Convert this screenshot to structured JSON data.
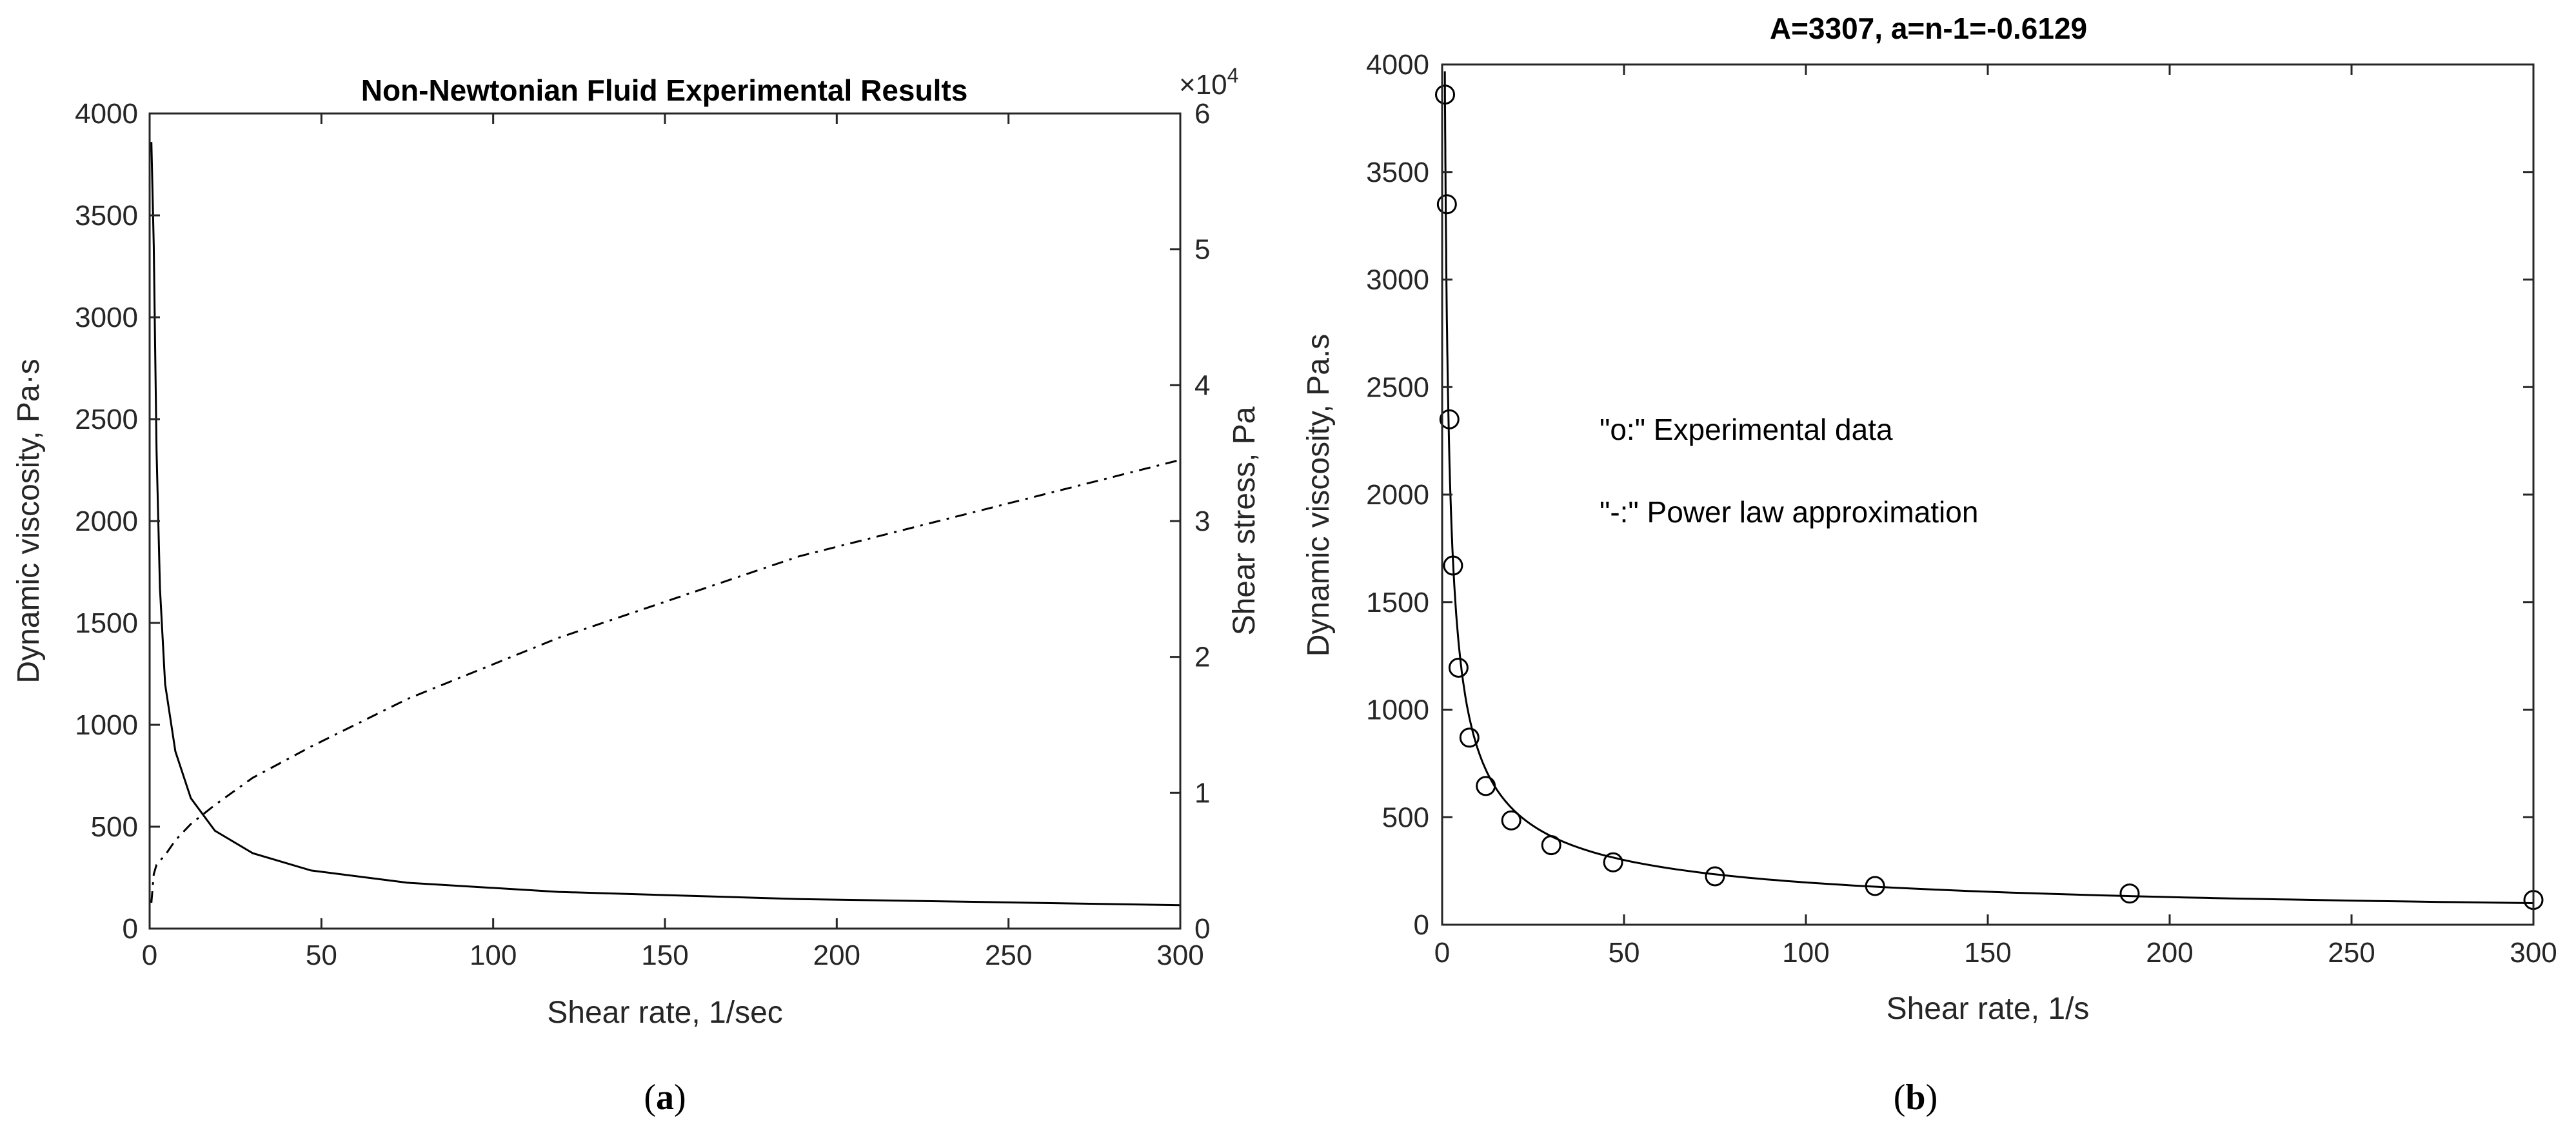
{
  "chart_data": [
    {
      "type": "line",
      "panel_label": "a",
      "title": "Non-Newtonian Fluid Experimental Results",
      "xlabel": "Shear rate, 1/sec",
      "ylabel": "Dynamic viscosity, Pa·s",
      "y2label": "Shear stress, Pa",
      "y2_exponent_label": "×10",
      "y2_exponent_power": "4",
      "xlim": [
        0,
        300
      ],
      "ylim": [
        0,
        4000
      ],
      "y2lim": [
        0,
        6
      ],
      "xticks": [
        "0",
        "50",
        "100",
        "150",
        "200",
        "250",
        "300"
      ],
      "yticks": [
        "0",
        "500",
        "1000",
        "1500",
        "2000",
        "2500",
        "3000",
        "3500",
        "4000"
      ],
      "y2ticks": [
        "0",
        "1",
        "2",
        "3",
        "4",
        "5",
        "6"
      ],
      "series": [
        {
          "axis": "left",
          "style": "solid",
          "x": [
            0.5,
            1.2,
            2,
            3,
            4.5,
            7.5,
            12,
            19,
            30,
            47,
            75,
            119,
            189,
            300
          ],
          "y": [
            3860,
            3350,
            2350,
            1670,
            1200,
            870,
            640,
            480,
            370,
            285,
            225,
            180,
            145,
            115
          ]
        },
        {
          "axis": "right",
          "style": "dashdot",
          "x": [
            0.5,
            1.2,
            2,
            3,
            4.5,
            7.5,
            12,
            19,
            30,
            47,
            75,
            119,
            189,
            300
          ],
          "y": [
            0.19,
            0.4,
            0.47,
            0.5,
            0.54,
            0.65,
            0.77,
            0.91,
            1.11,
            1.34,
            1.69,
            2.14,
            2.74,
            3.45
          ]
        }
      ]
    },
    {
      "type": "scatter",
      "panel_label": "b",
      "title": "A=3307, a=n-1=-0.6129",
      "xlabel": "Shear rate, 1/s",
      "ylabel": "Dynamic viscosity, Pa.s",
      "xlim": [
        0,
        300
      ],
      "ylim": [
        0,
        4000
      ],
      "xticks": [
        "0",
        "50",
        "100",
        "150",
        "200",
        "250",
        "300"
      ],
      "yticks": [
        "0",
        "500",
        "1000",
        "1500",
        "2000",
        "2500",
        "3000",
        "3500",
        "4000"
      ],
      "annotations": [
        "\"o:\" Experimental data",
        "\"-:\" Power law approximation"
      ],
      "fit": {
        "A": 3307,
        "a": -0.6129
      },
      "series": [
        {
          "marker": "o",
          "x": [
            0.8,
            1.3,
            2,
            3,
            4.5,
            7.5,
            12,
            19,
            30,
            47,
            75,
            119,
            189,
            300
          ],
          "y": [
            3860,
            3350,
            2350,
            1670,
            1195,
            870,
            645,
            485,
            370,
            290,
            225,
            180,
            145,
            115
          ]
        }
      ]
    }
  ]
}
